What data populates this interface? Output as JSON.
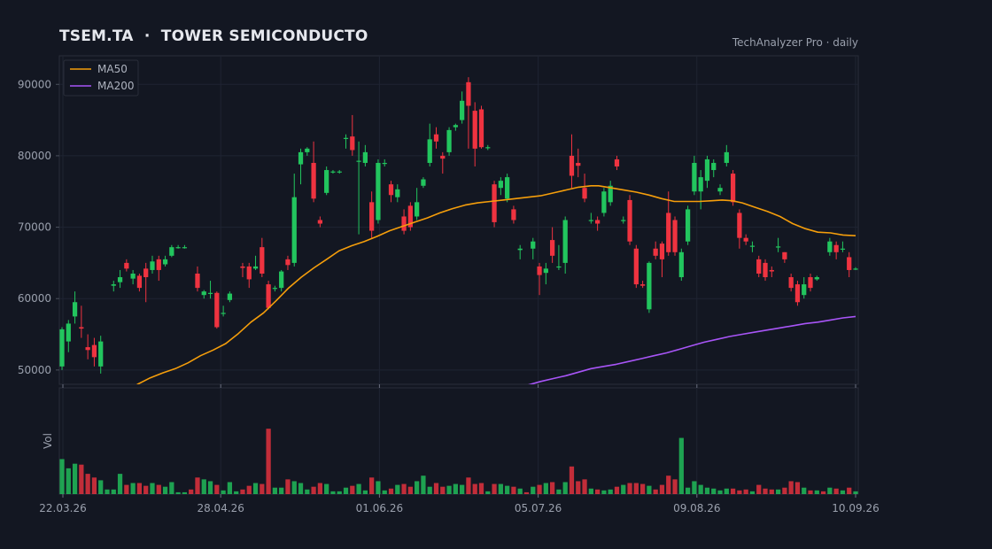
{
  "header": {
    "title": "TSEM.TA  ·  TOWER SEMICONDUCTO",
    "source": "TechAnalyzer Pro · daily"
  },
  "colors": {
    "background": "#131722",
    "up": "#22c55e",
    "down": "#ef3340",
    "ma50": "#f59e0b",
    "ma200": "#a855f7",
    "grid": "#1f2432",
    "text": "#9aa0ad"
  },
  "chart_data": {
    "type": "candlestick",
    "grid": true,
    "legend_position": "top-left",
    "price_axis": {
      "ylim": [
        48000,
        94000
      ],
      "ticks": [
        "50000",
        "60000",
        "70000",
        "80000",
        "90000"
      ]
    },
    "volume_axis": {
      "label": "Vol"
    },
    "x_tick_labels": [
      "22.03.26",
      "28.04.26",
      "01.06.26",
      "05.07.26",
      "09.08.26",
      "10.09.26"
    ],
    "legend": [
      "MA50",
      "MA200"
    ],
    "candles": [
      [
        50500,
        55700,
        50000,
        56000,
        0.38
      ],
      [
        54000,
        56500,
        52500,
        57000,
        0.28
      ],
      [
        57500,
        59500,
        56500,
        61000,
        0.33
      ],
      [
        56000,
        55800,
        54500,
        59000,
        0.32
      ],
      [
        53200,
        52800,
        51500,
        55000,
        0.22
      ],
      [
        53500,
        51800,
        50500,
        54500,
        0.18
      ],
      [
        50500,
        54000,
        49500,
        54800,
        0.15
      ],
      [
        null,
        null,
        null,
        null,
        0.05
      ],
      [
        61800,
        62000,
        61000,
        62500,
        0.05
      ],
      [
        62300,
        63000,
        61500,
        64000,
        0.22
      ],
      [
        65000,
        64200,
        63800,
        65500,
        0.1
      ],
      [
        62800,
        63500,
        62000,
        64000,
        0.12
      ],
      [
        63200,
        61500,
        61000,
        63500,
        0.12
      ],
      [
        64200,
        63000,
        59500,
        65000,
        0.09
      ],
      [
        64000,
        65200,
        63500,
        66000,
        0.12
      ],
      [
        65500,
        64000,
        62500,
        66000,
        0.1
      ],
      [
        64800,
        65500,
        64500,
        66000,
        0.08
      ],
      [
        66000,
        67200,
        65800,
        67500,
        0.13
      ],
      [
        67200,
        67200,
        67000,
        67500,
        0.02
      ],
      [
        67200,
        67200,
        67000,
        67500,
        0.02
      ],
      [
        null,
        null,
        null,
        null,
        0.05
      ],
      [
        63500,
        61500,
        61000,
        64500,
        0.18
      ],
      [
        60500,
        61000,
        60000,
        61200,
        0.16
      ],
      [
        60800,
        60800,
        60000,
        62500,
        0.14
      ],
      [
        60800,
        56000,
        55800,
        61000,
        0.1
      ],
      [
        58000,
        58000,
        57500,
        59000,
        0.04
      ],
      [
        59800,
        60700,
        59500,
        61000,
        0.13
      ],
      [
        null,
        null,
        null,
        null,
        0.03
      ],
      [
        64500,
        64300,
        63000,
        65000,
        0.05
      ],
      [
        64500,
        62700,
        61500,
        65000,
        0.09
      ],
      [
        64200,
        64500,
        64000,
        66000,
        0.12
      ],
      [
        67200,
        63500,
        63000,
        68500,
        0.11
      ],
      [
        62000,
        58700,
        58500,
        62500,
        0.71
      ],
      [
        61500,
        61500,
        61000,
        61800,
        0.07
      ],
      [
        61500,
        63800,
        61000,
        64000,
        0.07
      ],
      [
        65500,
        64700,
        64000,
        66000,
        0.16
      ],
      [
        65000,
        74200,
        64500,
        77500,
        0.14
      ],
      [
        78800,
        80500,
        76000,
        81000,
        0.12
      ],
      [
        80500,
        81000,
        80000,
        81200,
        0.05
      ],
      [
        79000,
        74000,
        73500,
        82000,
        0.08
      ],
      [
        71000,
        70500,
        70000,
        71500,
        0.12
      ],
      [
        74800,
        78000,
        74500,
        78500,
        0.11
      ],
      [
        77800,
        77800,
        77500,
        78000,
        0.03
      ],
      [
        77800,
        77800,
        77500,
        78000,
        0.03
      ],
      [
        82500,
        82500,
        81000,
        83000,
        0.07
      ],
      [
        82700,
        80800,
        80000,
        85700,
        0.09
      ],
      [
        79300,
        79300,
        69000,
        82000,
        0.11
      ],
      [
        79000,
        80500,
        78500,
        81500,
        0.04
      ],
      [
        73500,
        69500,
        68500,
        75000,
        0.18
      ],
      [
        71000,
        79000,
        70500,
        79500,
        0.14
      ],
      [
        79000,
        79000,
        78500,
        79500,
        0.04
      ],
      [
        76000,
        74500,
        73500,
        76500,
        0.06
      ],
      [
        74200,
        75300,
        73500,
        76000,
        0.1
      ],
      [
        71500,
        69500,
        69000,
        72500,
        0.11
      ],
      [
        73000,
        70000,
        69500,
        73500,
        0.08
      ],
      [
        71500,
        73500,
        71000,
        75500,
        0.14
      ],
      [
        75800,
        76700,
        75500,
        77000,
        0.2
      ],
      [
        79000,
        82300,
        78500,
        84500,
        0.08
      ],
      [
        83000,
        82000,
        81000,
        84000,
        0.12
      ],
      [
        80000,
        79600,
        77500,
        80500,
        0.08
      ],
      [
        80500,
        83600,
        80000,
        84000,
        0.09
      ],
      [
        84000,
        84300,
        83500,
        84500,
        0.11
      ],
      [
        85000,
        87700,
        84500,
        89000,
        0.1
      ],
      [
        90300,
        87000,
        81000,
        91000,
        0.18
      ],
      [
        86300,
        81000,
        78500,
        87500,
        0.11
      ],
      [
        86500,
        81200,
        81000,
        87000,
        0.12
      ],
      [
        81200,
        81200,
        80800,
        81500,
        0.03
      ],
      [
        76000,
        70700,
        70000,
        76500,
        0.11
      ],
      [
        75500,
        76500,
        74500,
        77000,
        0.11
      ],
      [
        74000,
        77000,
        73500,
        77500,
        0.09
      ],
      [
        72500,
        71000,
        70500,
        73000,
        0.08
      ],
      [
        66800,
        67000,
        65500,
        67500,
        0.06
      ],
      [
        null,
        null,
        null,
        null,
        0.02
      ],
      [
        67000,
        68000,
        65500,
        68500,
        0.08
      ],
      [
        64500,
        63300,
        60500,
        65000,
        0.1
      ],
      [
        63600,
        64200,
        62000,
        65000,
        0.12
      ],
      [
        68200,
        66000,
        65000,
        70000,
        0.13
      ],
      [
        64500,
        64500,
        64000,
        67500,
        0.05
      ],
      [
        65000,
        71000,
        63500,
        71500,
        0.13
      ],
      [
        80000,
        77200,
        75500,
        83000,
        0.3
      ],
      [
        79000,
        78600,
        77000,
        81000,
        0.14
      ],
      [
        75500,
        74000,
        73500,
        77500,
        0.16
      ],
      [
        71000,
        71000,
        70500,
        72000,
        0.06
      ],
      [
        71000,
        70500,
        69500,
        71500,
        0.05
      ],
      [
        72000,
        75000,
        71500,
        75500,
        0.04
      ],
      [
        73500,
        75800,
        73000,
        76500,
        0.05
      ],
      [
        79500,
        78500,
        78000,
        80000,
        0.08
      ],
      [
        71000,
        71000,
        70500,
        71500,
        0.1
      ],
      [
        73800,
        68000,
        67500,
        74500,
        0.12
      ],
      [
        67000,
        62000,
        61500,
        67500,
        0.12
      ],
      [
        62000,
        61800,
        61500,
        62500,
        0.11
      ],
      [
        58500,
        65000,
        58000,
        65200,
        0.09
      ],
      [
        67000,
        66000,
        65500,
        68000,
        0.05
      ],
      [
        67700,
        65500,
        63000,
        68000,
        0.1
      ],
      [
        72000,
        66500,
        66000,
        75000,
        0.2
      ],
      [
        71000,
        66500,
        66000,
        71500,
        0.16
      ],
      [
        63000,
        66500,
        62500,
        67000,
        0.61
      ],
      [
        68000,
        72500,
        67500,
        73000,
        0.07
      ],
      [
        75000,
        79000,
        74500,
        80000,
        0.14
      ],
      [
        75000,
        77000,
        72500,
        78000,
        0.1
      ],
      [
        76500,
        79500,
        75500,
        80000,
        0.07
      ],
      [
        78000,
        79000,
        77000,
        79500,
        0.06
      ],
      [
        75000,
        75500,
        74500,
        76000,
        0.04
      ],
      [
        79000,
        80500,
        78500,
        81500,
        0.06
      ],
      [
        77500,
        73500,
        73000,
        78000,
        0.06
      ],
      [
        72000,
        68500,
        67000,
        72500,
        0.04
      ],
      [
        68500,
        68000,
        67500,
        69000,
        0.05
      ],
      [
        67400,
        67400,
        66500,
        68000,
        0.03
      ],
      [
        65500,
        63500,
        63000,
        66000,
        0.1
      ],
      [
        65000,
        63000,
        62500,
        65500,
        0.06
      ],
      [
        64000,
        63800,
        63000,
        64500,
        0.05
      ],
      [
        67300,
        67300,
        66500,
        68500,
        0.05
      ],
      [
        66500,
        65500,
        65000,
        66500,
        0.07
      ],
      [
        63000,
        61500,
        61000,
        63500,
        0.14
      ],
      [
        62000,
        59500,
        59000,
        62500,
        0.13
      ],
      [
        60500,
        62000,
        60000,
        63000,
        0.07
      ],
      [
        63000,
        61500,
        61000,
        63500,
        0.04
      ],
      [
        62700,
        63000,
        62500,
        63200,
        0.04
      ],
      [
        null,
        null,
        null,
        null,
        0.03
      ],
      [
        66500,
        68000,
        66000,
        68500,
        0.07
      ],
      [
        67500,
        66500,
        65500,
        68000,
        0.06
      ],
      [
        67000,
        67000,
        66500,
        68000,
        0.04
      ],
      [
        65800,
        64000,
        63000,
        66500,
        0.07
      ],
      [
        64200,
        64200,
        64000,
        64400,
        0.03
      ]
    ],
    "ma50": [
      [
        0,
        44500
      ],
      [
        10,
        45000
      ],
      [
        20,
        45800
      ],
      [
        24,
        46700
      ],
      [
        27,
        47300
      ],
      [
        30,
        48000
      ],
      [
        35,
        48900
      ],
      [
        40,
        49600
      ],
      [
        45,
        50200
      ],
      [
        50,
        51000
      ],
      [
        55,
        52000
      ],
      [
        60,
        52800
      ],
      [
        65,
        53700
      ],
      [
        70,
        55100
      ],
      [
        75,
        56700
      ],
      [
        80,
        58000
      ],
      [
        85,
        59700
      ],
      [
        90,
        61500
      ],
      [
        95,
        63000
      ],
      [
        100,
        64300
      ],
      [
        105,
        65500
      ],
      [
        110,
        66700
      ],
      [
        115,
        67400
      ],
      [
        120,
        68000
      ],
      [
        125,
        68700
      ],
      [
        130,
        69500
      ],
      [
        135,
        70100
      ],
      [
        140,
        70700
      ],
      [
        145,
        71300
      ],
      [
        150,
        72000
      ],
      [
        155,
        72600
      ],
      [
        160,
        73100
      ],
      [
        165,
        73400
      ],
      [
        170,
        73600
      ],
      [
        175,
        73800
      ],
      [
        180,
        74000
      ],
      [
        185,
        74200
      ],
      [
        190,
        74400
      ],
      [
        195,
        74800
      ],
      [
        200,
        75200
      ],
      [
        205,
        75600
      ],
      [
        210,
        75800
      ],
      [
        213,
        75800
      ],
      [
        218,
        75500
      ],
      [
        223,
        75200
      ],
      [
        228,
        74900
      ],
      [
        233,
        74500
      ],
      [
        238,
        74000
      ],
      [
        243,
        73600
      ],
      [
        248,
        73600
      ],
      [
        253,
        73600
      ],
      [
        258,
        73700
      ],
      [
        262,
        73800
      ],
      [
        266,
        73700
      ],
      [
        270,
        73400
      ],
      [
        275,
        72800
      ],
      [
        280,
        72200
      ],
      [
        285,
        71500
      ],
      [
        290,
        70500
      ],
      [
        295,
        69800
      ],
      [
        300,
        69300
      ],
      [
        305,
        69200
      ],
      [
        310,
        68900
      ],
      [
        315,
        68800
      ]
    ],
    "ma200": [
      [
        175,
        47100
      ],
      [
        180,
        47400
      ],
      [
        185,
        47900
      ],
      [
        190,
        48400
      ],
      [
        195,
        48800
      ],
      [
        200,
        49200
      ],
      [
        205,
        49700
      ],
      [
        210,
        50200
      ],
      [
        215,
        50500
      ],
      [
        220,
        50800
      ],
      [
        225,
        51200
      ],
      [
        230,
        51600
      ],
      [
        235,
        52000
      ],
      [
        240,
        52400
      ],
      [
        245,
        52900
      ],
      [
        250,
        53400
      ],
      [
        255,
        53900
      ],
      [
        260,
        54300
      ],
      [
        265,
        54700
      ],
      [
        270,
        55000
      ],
      [
        275,
        55300
      ],
      [
        280,
        55600
      ],
      [
        285,
        55900
      ],
      [
        290,
        56200
      ],
      [
        295,
        56500
      ],
      [
        300,
        56700
      ],
      [
        305,
        57000
      ],
      [
        310,
        57300
      ],
      [
        315,
        57500
      ]
    ]
  }
}
